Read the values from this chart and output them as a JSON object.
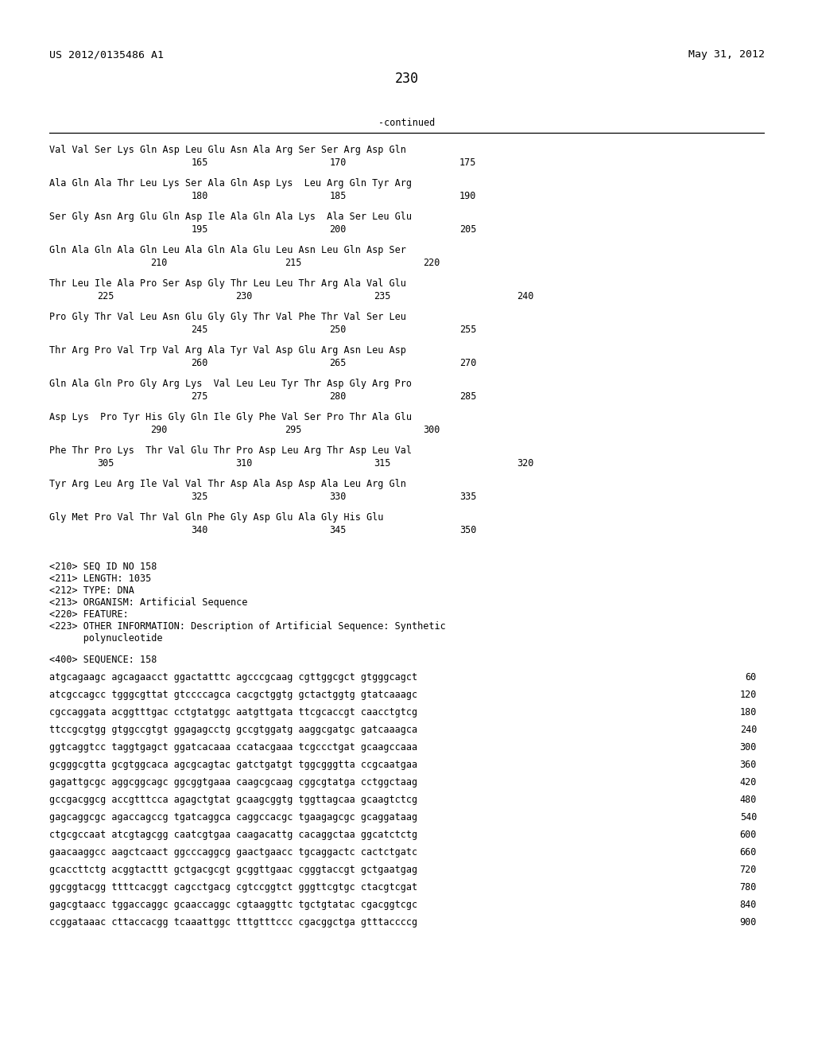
{
  "header_left": "US 2012/0135486 A1",
  "header_right": "May 31, 2012",
  "page_number": "230",
  "continued_label": "-continued",
  "background_color": "#ffffff",
  "text_color": "#000000",
  "font_size_header": 9.5,
  "font_size_body": 8.5,
  "font_size_page": 12,
  "protein_blocks": [
    {
      "seq": "Val Val Ser Lys Gln Asp Leu Glu Asn Ala Arg Ser Ser Arg Asp Gln",
      "nums": [
        [
          "165",
          0.245
        ],
        [
          "170",
          0.415
        ],
        [
          "175",
          0.575
        ]
      ]
    },
    {
      "seq": "Ala Gln Ala Thr Leu Lys Ser Ala Gln Asp Lys  Leu Arg Gln Tyr Arg",
      "nums": [
        [
          "180",
          0.245
        ],
        [
          "185",
          0.415
        ],
        [
          "190",
          0.575
        ]
      ]
    },
    {
      "seq": "Ser Gly Asn Arg Glu Gln Asp Ile Ala Gln Ala Lys  Ala Ser Leu Glu",
      "nums": [
        [
          "195",
          0.245
        ],
        [
          "200",
          0.415
        ],
        [
          "205",
          0.575
        ]
      ]
    },
    {
      "seq": "Gln Ala Gln Ala Gln Leu Ala Gln Ala Glu Leu Asn Leu Gln Asp Ser",
      "nums": [
        [
          "210",
          0.195
        ],
        [
          "215",
          0.36
        ],
        [
          "220",
          0.53
        ]
      ]
    },
    {
      "seq": "Thr Leu Ile Ala Pro Ser Asp Gly Thr Leu Leu Thr Arg Ala Val Glu",
      "nums": [
        [
          "225",
          0.13
        ],
        [
          "230",
          0.3
        ],
        [
          "235",
          0.47
        ],
        [
          "240",
          0.645
        ]
      ]
    },
    {
      "seq": "Pro Gly Thr Val Leu Asn Glu Gly Gly Thr Val Phe Thr Val Ser Leu",
      "nums": [
        [
          "245",
          0.245
        ],
        [
          "250",
          0.415
        ],
        [
          "255",
          0.575
        ]
      ]
    },
    {
      "seq": "Thr Arg Pro Val Trp Val Arg Ala Tyr Val Asp Glu Arg Asn Leu Asp",
      "nums": [
        [
          "260",
          0.245
        ],
        [
          "265",
          0.415
        ],
        [
          "270",
          0.575
        ]
      ]
    },
    {
      "seq": "Gln Ala Gln Pro Gly Arg Lys  Val Leu Leu Tyr Thr Asp Gly Arg Pro",
      "nums": [
        [
          "275",
          0.245
        ],
        [
          "280",
          0.415
        ],
        [
          "285",
          0.575
        ]
      ]
    },
    {
      "seq": "Asp Lys  Pro Tyr His Gly Gln Ile Gly Phe Val Ser Pro Thr Ala Glu",
      "nums": [
        [
          "290",
          0.195
        ],
        [
          "295",
          0.36
        ],
        [
          "300",
          0.53
        ]
      ]
    },
    {
      "seq": "Phe Thr Pro Lys  Thr Val Glu Thr Pro Asp Leu Arg Thr Asp Leu Val",
      "nums": [
        [
          "305",
          0.13
        ],
        [
          "310",
          0.3
        ],
        [
          "315",
          0.47
        ],
        [
          "320",
          0.645
        ]
      ]
    },
    {
      "seq": "Tyr Arg Leu Arg Ile Val Val Thr Asp Ala Asp Asp Ala Leu Arg Gln",
      "nums": [
        [
          "325",
          0.245
        ],
        [
          "330",
          0.415
        ],
        [
          "335",
          0.575
        ]
      ]
    },
    {
      "seq": "Gly Met Pro Val Thr Val Gln Phe Gly Asp Glu Ala Gly His Glu",
      "nums": [
        [
          "340",
          0.245
        ],
        [
          "345",
          0.415
        ],
        [
          "350",
          0.575
        ]
      ]
    }
  ],
  "metadata_lines": [
    "<210> SEQ ID NO 158",
    "<211> LENGTH: 1035",
    "<212> TYPE: DNA",
    "<213> ORGANISM: Artificial Sequence",
    "<220> FEATURE:",
    "<223> OTHER INFORMATION: Description of Artificial Sequence: Synthetic",
    "      polynucleotide"
  ],
  "sequence_label": "<400> SEQUENCE: 158",
  "dna_lines": [
    [
      "atgcagaagc agcagaacct ggactatttc agcccgcaag cgttggcgct gtgggcagct",
      "60"
    ],
    [
      "atcgccagcc tgggcgttat gtccccagca cacgctggtg gctactggtg gtatcaaagc",
      "120"
    ],
    [
      "cgccaggata acggtttgac cctgtatggc aatgttgata ttcgcaccgt caacctgtcg",
      "180"
    ],
    [
      "ttccgcgtgg gtggccgtgt ggagagcctg gccgtggatg aaggcgatgc gatcaaagca",
      "240"
    ],
    [
      "ggtcaggtcc taggtgagct ggatcacaaa ccatacgaaa tcgccctgat gcaagccaaa",
      "300"
    ],
    [
      "gcgggcgtta gcgtggcaca agcgcagtac gatctgatgt tggcgggtta ccgcaatgaa",
      "360"
    ],
    [
      "gagattgcgc aggcggcagc ggcggtgaaa caagcgcaag cggcgtatga cctggctaag",
      "420"
    ],
    [
      "gccgacggcg accgtttcca agagctgtat gcaagcggtg tggttagcaa gcaagtctcg",
      "480"
    ],
    [
      "gagcaggcgc agaccagccg tgatcaggca caggccacgc tgaagagcgc gcaggataag",
      "540"
    ],
    [
      "ctgcgccaat atcgtagcgg caatcgtgaa caagacattg cacaggctaa ggcatctctg",
      "600"
    ],
    [
      "gaacaaggcc aagctcaact ggcccaggcg gaactgaacc tgcaggactc cactctgatc",
      "660"
    ],
    [
      "gcaccttctg acggtacttt gctgacgcgt gcggttgaac cgggtaccgt gctgaatgag",
      "720"
    ],
    [
      "ggcggtacgg ttttcacggt cagcctgacg cgtccggtct gggttcgtgc ctacgtcgat",
      "780"
    ],
    [
      "gagcgtaacc tggaccaggc gcaaccaggc cgtaaggttc tgctgtatac cgacggtcgc",
      "840"
    ],
    [
      "ccggataaac cttaccacgg tcaaattggc tttgtttccc cgacggctga gtttaccccg",
      "900"
    ]
  ]
}
